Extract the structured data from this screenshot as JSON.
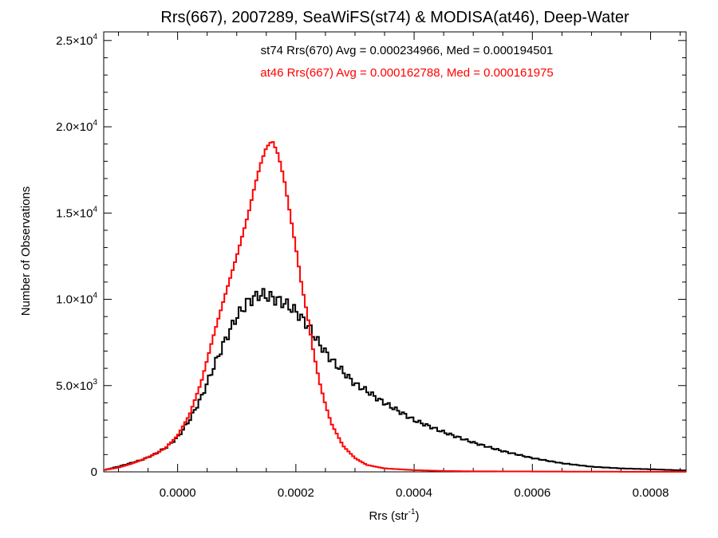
{
  "chart_data": {
    "type": "histogram",
    "title": "Rrs(667), 2007289, SeaWiFS(st74) & MODISA(at46), Deep-Water",
    "xlabel": "Rrs (str",
    "xlabel_sup": "-1",
    "xlabel_end": ")",
    "ylabel": "Number of Observations",
    "xlim": [
      -0.000125,
      0.00086
    ],
    "ylim": [
      0,
      25500
    ],
    "x_ticks": [
      {
        "value": 0.0,
        "label": "0.0000"
      },
      {
        "value": 0.0002,
        "label": "0.0002"
      },
      {
        "value": 0.0004,
        "label": "0.0004"
      },
      {
        "value": 0.0006,
        "label": "0.0006"
      },
      {
        "value": 0.0008,
        "label": "0.0008"
      }
    ],
    "y_ticks": [
      {
        "value": 0,
        "mantissa": "0",
        "exp": ""
      },
      {
        "value": 5000,
        "mantissa": "5.0×10",
        "exp": "3"
      },
      {
        "value": 10000,
        "mantissa": "1.0×10",
        "exp": "4"
      },
      {
        "value": 15000,
        "mantissa": "1.5×10",
        "exp": "4"
      },
      {
        "value": 20000,
        "mantissa": "2.0×10",
        "exp": "4"
      },
      {
        "value": 25000,
        "mantissa": "2.5×10",
        "exp": "4"
      }
    ],
    "annotations": [
      {
        "text": "st74 Rrs(670) Avg = 0.000234966, Med = 0.000194501",
        "color": "#000000"
      },
      {
        "text": "at46 Rrs(667) Avg = 0.000162788, Med = 0.000161975",
        "color": "#ff0000"
      }
    ],
    "series": [
      {
        "name": "st74",
        "color": "#000000",
        "x": [
          -0.000125,
          -0.0001,
          -8e-05,
          -6e-05,
          -4e-05,
          -2e-05,
          0.0,
          2e-05,
          4e-05,
          6e-05,
          8e-05,
          0.0001,
          0.00012,
          0.00014,
          0.00016,
          0.00018,
          0.0002,
          0.00022,
          0.00024,
          0.00026,
          0.00028,
          0.0003,
          0.00032,
          0.00034,
          0.00036,
          0.00038,
          0.0004,
          0.00045,
          0.0005,
          0.00055,
          0.0006,
          0.00065,
          0.0007,
          0.00075,
          0.0008,
          0.00086
        ],
        "y": [
          100,
          300,
          500,
          700,
          1000,
          1400,
          2000,
          3000,
          4300,
          6000,
          7600,
          9000,
          9900,
          10300,
          10100,
          9800,
          9300,
          8500,
          7400,
          6500,
          5800,
          5100,
          4700,
          4200,
          3800,
          3400,
          3000,
          2300,
          1700,
          1200,
          800,
          500,
          300,
          200,
          150,
          80
        ]
      },
      {
        "name": "at46",
        "color": "#ff0000",
        "x": [
          -0.000125,
          -0.0001,
          -8e-05,
          -6e-05,
          -4e-05,
          -2e-05,
          0.0,
          2e-05,
          4e-05,
          6e-05,
          8e-05,
          0.0001,
          0.00012,
          0.00013,
          0.00014,
          0.00015,
          0.00016,
          0.00017,
          0.00018,
          0.00019,
          0.0002,
          0.00021,
          0.00022,
          0.00023,
          0.00024,
          0.00025,
          0.00026,
          0.00028,
          0.0003,
          0.00032,
          0.00035,
          0.0004,
          0.00045,
          0.0005,
          0.0006,
          0.0007,
          0.00086
        ],
        "y": [
          100,
          250,
          450,
          700,
          1000,
          1400,
          2100,
          3300,
          5200,
          7800,
          10200,
          12500,
          15000,
          16500,
          17800,
          18800,
          19200,
          18400,
          17000,
          15000,
          13000,
          10800,
          9000,
          6900,
          5200,
          3900,
          2800,
          1500,
          800,
          400,
          200,
          100,
          50,
          30,
          20,
          10,
          5
        ]
      }
    ]
  }
}
